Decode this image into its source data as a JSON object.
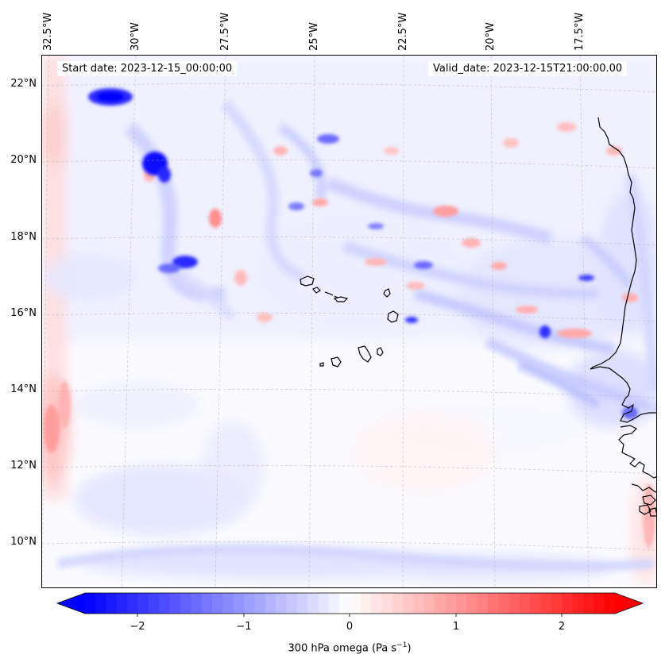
{
  "header": {
    "start_label": "Start date: 2023-12-15_00:00:00",
    "valid_label": "Valid_date: 2023-12-15T21:00:00.00"
  },
  "map": {
    "lon_labels": [
      "32.5°W",
      "30°W",
      "27.5°W",
      "25°W",
      "22.5°W",
      "20°W",
      "17.5°W"
    ],
    "lat_labels": [
      "22°N",
      "20°N",
      "18°N",
      "16°N",
      "14°N",
      "12°N",
      "10°N"
    ],
    "extent": {
      "lon_min": -33.0,
      "lon_max": -16.1,
      "lat_min": 8.9,
      "lat_max": 22.8
    }
  },
  "colorbar": {
    "ticks": [
      "−2",
      "−1",
      "0",
      "1",
      "2"
    ],
    "label": "300 hPa omega (Pa s",
    "label_sup": "−1",
    "label_end": ")",
    "min": -2.6,
    "max": 2.6,
    "cmap": [
      "#0000ff",
      "#ffffff",
      "#ff0000"
    ]
  },
  "field": {
    "units": "Pa s-1",
    "features": [
      {
        "name": "strong-ascent",
        "lon": -30.8,
        "lat": 21.8,
        "value": -2.4
      },
      {
        "name": "strong-ascent",
        "lon": -29.5,
        "lat": 19.8,
        "value": -2.5
      },
      {
        "name": "strong-ascent",
        "lon": -28.5,
        "lat": 17.4,
        "value": -1.8
      },
      {
        "name": "ascent",
        "lon": -22.1,
        "lat": 15.8,
        "value": -1.6
      },
      {
        "name": "ascent",
        "lon": -20.6,
        "lat": 15.6,
        "value": -1.5
      },
      {
        "name": "ascent",
        "lon": -17.4,
        "lat": 17.0,
        "value": -1.2
      },
      {
        "name": "subsidence",
        "lon": -32.8,
        "lat": 13.2,
        "value": 0.8
      },
      {
        "name": "subsidence",
        "lon": -26.4,
        "lat": 18.4,
        "value": 0.9
      },
      {
        "name": "subsidence",
        "lon": -21.2,
        "lat": 18.6,
        "value": 0.7
      }
    ]
  },
  "islands": [
    "Santo Antão",
    "São Vicente",
    "São Nicolau",
    "Sal",
    "Boa Vista",
    "Maio",
    "Santiago",
    "Fogo",
    "Brava"
  ]
}
